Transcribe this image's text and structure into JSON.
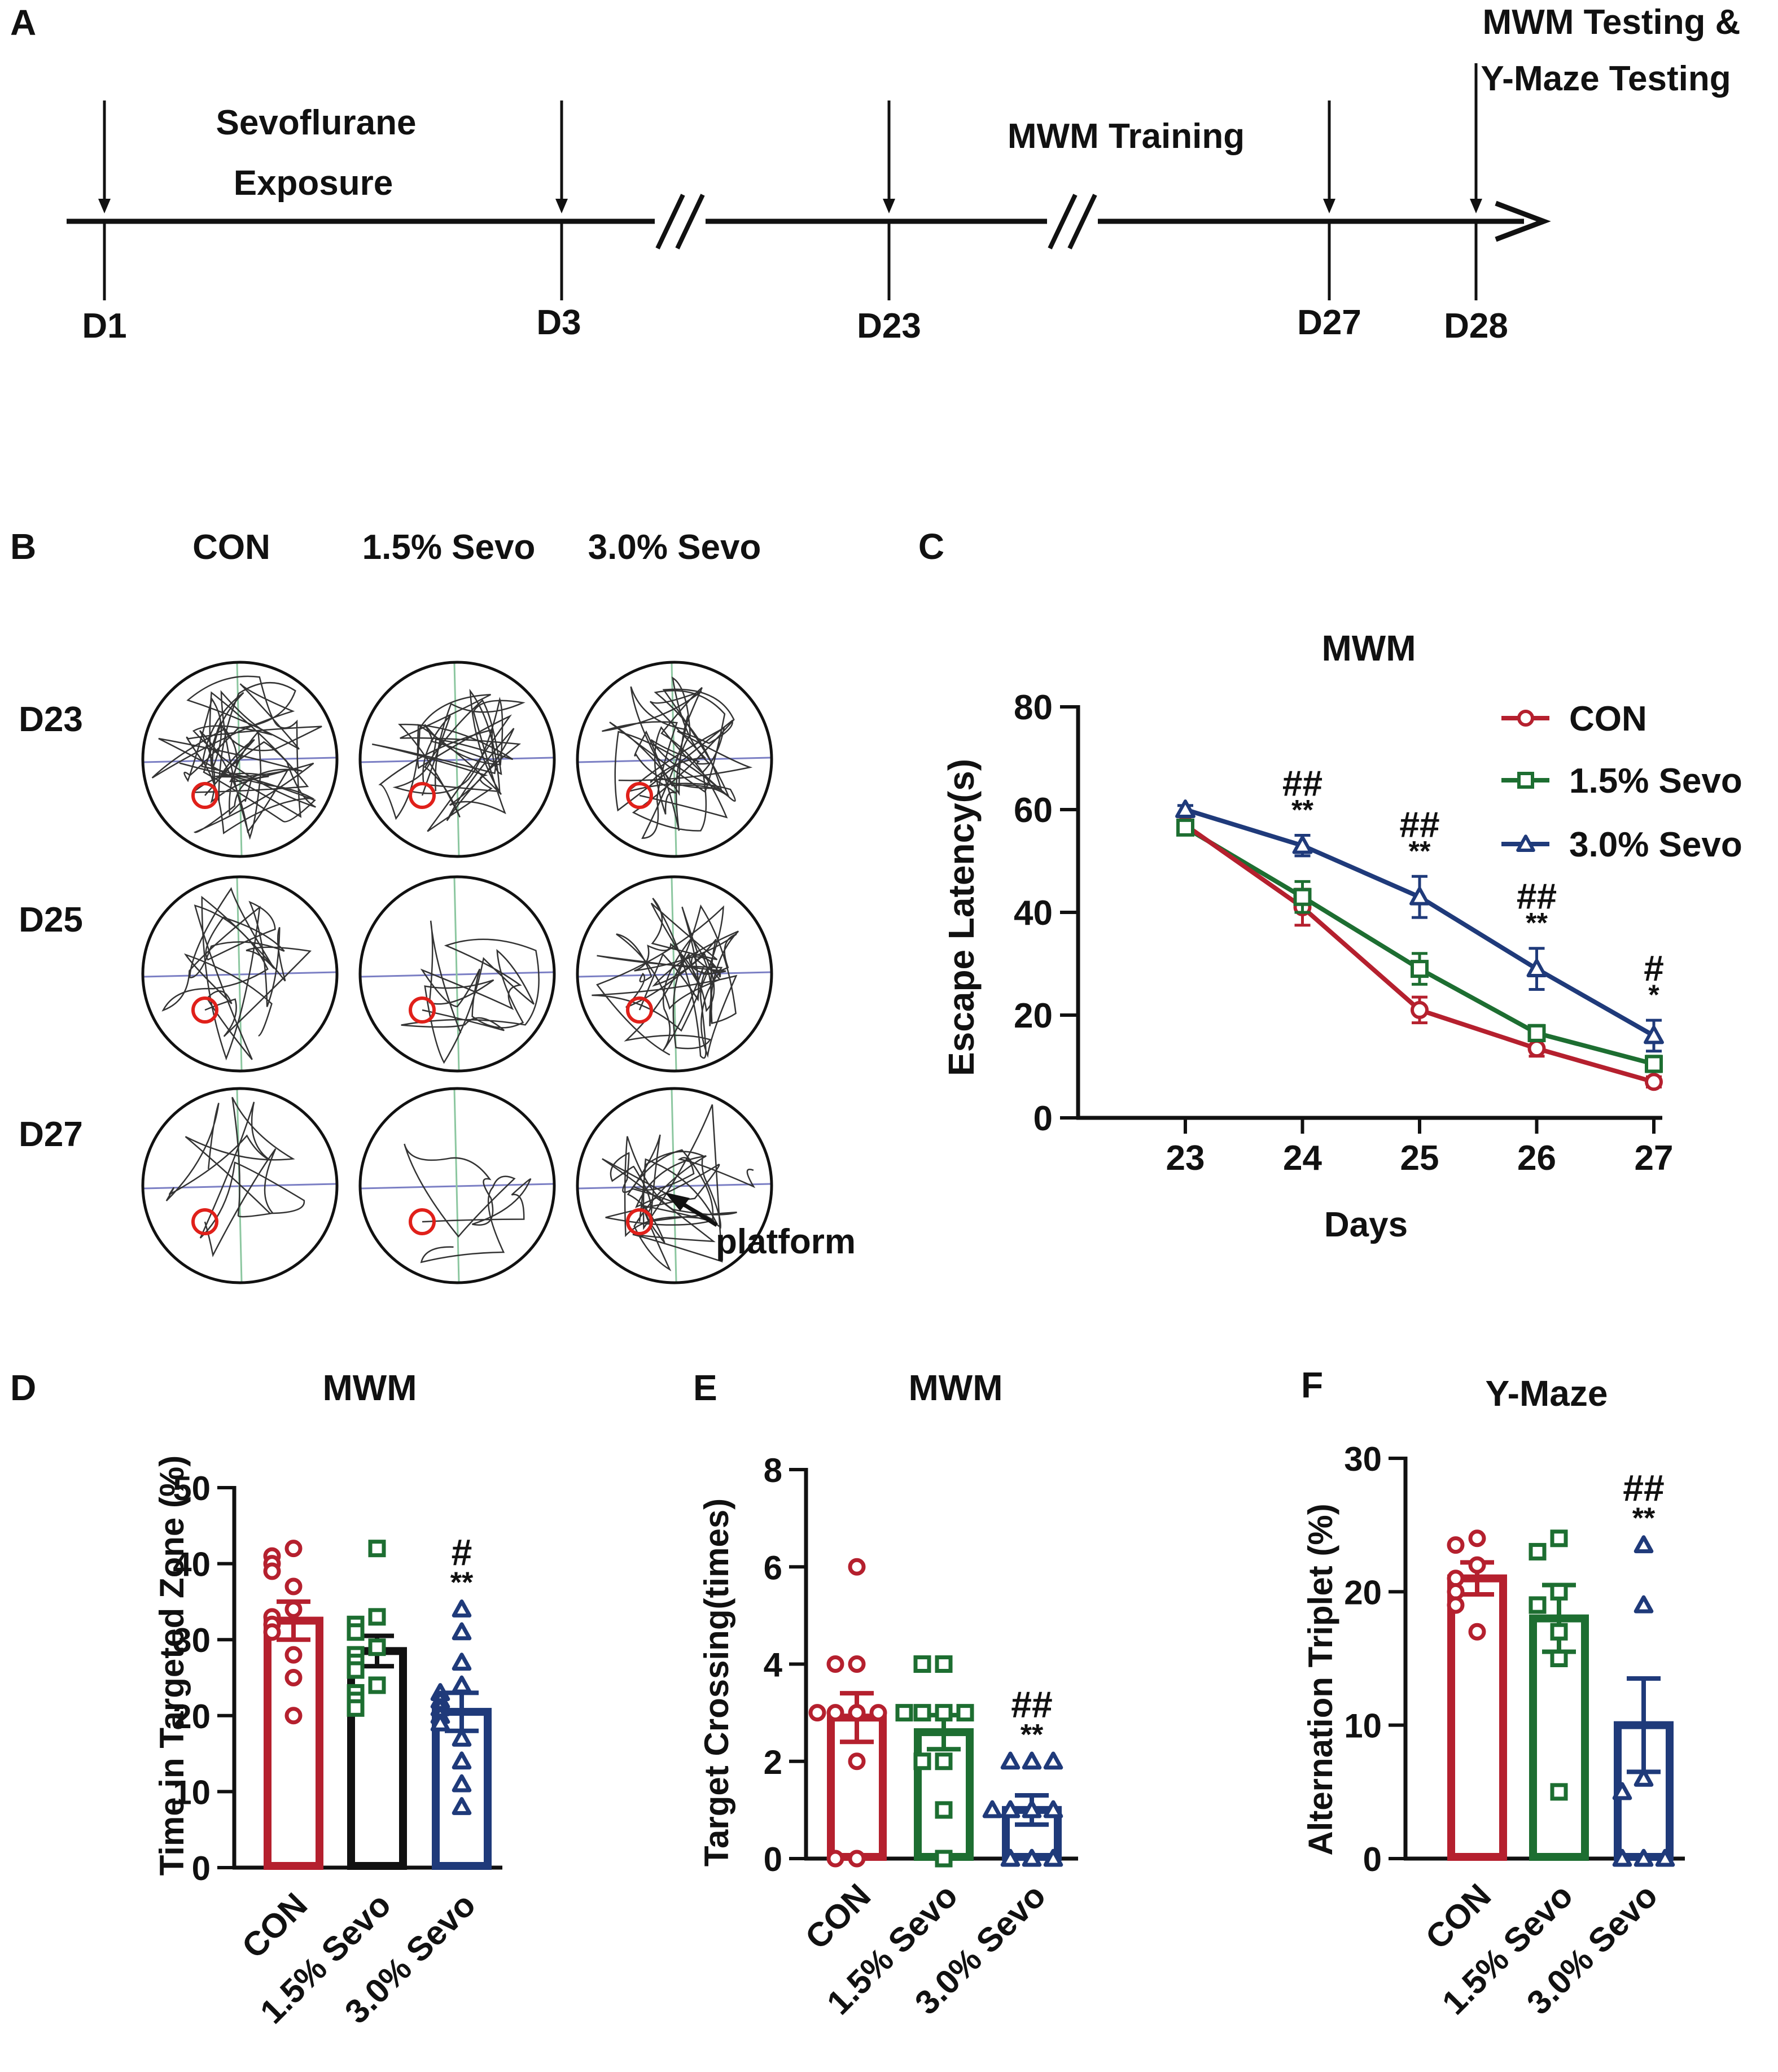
{
  "colors": {
    "con": "#b5202e",
    "sevo15": "#1d6e31",
    "sevo30": "#1f3a7a",
    "black": "#111111",
    "grid_h": "#7b7fc4",
    "grid_v": "#8cc7a0",
    "platform": "#e0201a"
  },
  "panel_a": {
    "label": "A",
    "markers": [
      {
        "day": "D1"
      },
      {
        "day": "D3"
      },
      {
        "day": "D23"
      },
      {
        "day": "D27"
      },
      {
        "day": "D28"
      }
    ],
    "labels": {
      "sevo_line1": "Sevoflurane",
      "sevo_line2": "Exposure",
      "training": "MWM Training",
      "testing_line1": "MWM Testing &",
      "testing_line2": "Y-Maze Testing"
    }
  },
  "panel_b": {
    "label": "B",
    "columns": [
      "CON",
      "1.5% Sevo",
      "3.0% Sevo"
    ],
    "rows": [
      "D23",
      "D25",
      "D27"
    ],
    "annotation": "platform"
  },
  "chart_data": [
    {
      "panel": "C",
      "type": "line",
      "title": "MWM",
      "xlabel": "Days",
      "ylabel": "Escape Latency(s)",
      "x": [
        23,
        24,
        25,
        26,
        27
      ],
      "xticks": [
        "23",
        "24",
        "25",
        "26",
        "27"
      ],
      "ylim": [
        0,
        80
      ],
      "yticks": [
        "0",
        "20",
        "40",
        "60",
        "80"
      ],
      "legend": "top-right",
      "series": [
        {
          "name": "CON",
          "color": "#b5202e",
          "marker": "circle",
          "values": [
            57,
            41,
            21,
            13.5,
            7
          ],
          "err": [
            1,
            3.5,
            2.5,
            1.5,
            1
          ]
        },
        {
          "name": "1.5% Sevo",
          "color": "#1d6e31",
          "marker": "square",
          "values": [
            56.5,
            43,
            29,
            16.5,
            10.5
          ],
          "err": [
            1,
            3,
            3,
            1.5,
            1.5
          ]
        },
        {
          "name": "3.0% Sevo",
          "color": "#1f3a7a",
          "marker": "triangle",
          "values": [
            60,
            53,
            43,
            29,
            16
          ],
          "err": [
            0.8,
            2,
            4,
            4,
            3
          ]
        }
      ],
      "annotations": [
        {
          "x": 24,
          "hash": "##",
          "stars": "**"
        },
        {
          "x": 25,
          "hash": "##",
          "stars": "**"
        },
        {
          "x": 26,
          "hash": "##",
          "stars": "**"
        },
        {
          "x": 27,
          "hash": "#",
          "stars": "*"
        }
      ]
    },
    {
      "panel": "D",
      "type": "bar",
      "title": "MWM",
      "ylabel": "Time in Targeted Zone (%)",
      "categories": [
        "CON",
        "1.5% Sevo",
        "3.0% Sevo"
      ],
      "ylim": [
        0,
        50
      ],
      "yticks": [
        "0",
        "10",
        "20",
        "30",
        "40",
        "50"
      ],
      "values": [
        32.5,
        28.5,
        20.5
      ],
      "err": [
        2.5,
        2,
        2.5
      ],
      "bar_colors": [
        "#b5202e",
        "#111111",
        "#1f3a7a"
      ],
      "point_colors": [
        "#b5202e",
        "#1d6e31",
        "#1f3a7a"
      ],
      "markers": [
        "circle",
        "square",
        "triangle"
      ],
      "points": [
        [
          42,
          41,
          40,
          39,
          37,
          34,
          33,
          32,
          31,
          28,
          25,
          20
        ],
        [
          42,
          33,
          32,
          31,
          29,
          28,
          27,
          26,
          24,
          23,
          22,
          21
        ],
        [
          34,
          31,
          27,
          24,
          23,
          22,
          21,
          20,
          19,
          17,
          14,
          11,
          8
        ]
      ],
      "annotation": {
        "index": 2,
        "hash": "#",
        "stars": "**"
      }
    },
    {
      "panel": "E",
      "type": "bar",
      "title": "MWM",
      "ylabel": "Target Crossing(times)",
      "categories": [
        "CON",
        "1.5% Sevo",
        "3.0% Sevo"
      ],
      "ylim": [
        0,
        8
      ],
      "yticks": [
        "0",
        "2",
        "4",
        "6",
        "8"
      ],
      "values": [
        2.9,
        2.6,
        1
      ],
      "err": [
        0.5,
        0.35,
        0.3
      ],
      "bar_colors": [
        "#b5202e",
        "#1d6e31",
        "#1f3a7a"
      ],
      "point_colors": [
        "#b5202e",
        "#1d6e31",
        "#1f3a7a"
      ],
      "markers": [
        "circle",
        "square",
        "triangle"
      ],
      "points": [
        [
          6,
          4,
          4,
          3,
          3,
          3,
          3,
          2,
          0,
          0
        ],
        [
          4,
          4,
          3,
          3,
          3,
          3,
          2,
          2,
          1,
          0
        ],
        [
          2,
          2,
          2,
          1,
          1,
          1,
          1,
          0,
          0,
          0
        ]
      ],
      "annotation": {
        "index": 2,
        "hash": "##",
        "stars": "**"
      }
    },
    {
      "panel": "F",
      "type": "bar",
      "title": "Y-Maze",
      "ylabel": "Alternation Triplet (%)",
      "categories": [
        "CON",
        "1.5% Sevo",
        "3.0% Sevo"
      ],
      "ylim": [
        0,
        30
      ],
      "yticks": [
        "0",
        "10",
        "20",
        "30"
      ],
      "values": [
        21,
        18,
        10
      ],
      "err": [
        1.2,
        2.5,
        3.5
      ],
      "bar_colors": [
        "#b5202e",
        "#1d6e31",
        "#1f3a7a"
      ],
      "point_colors": [
        "#b5202e",
        "#1d6e31",
        "#1f3a7a"
      ],
      "markers": [
        "circle",
        "square",
        "triangle"
      ],
      "points": [
        [
          24,
          23.5,
          22,
          21,
          20,
          19,
          17
        ],
        [
          24,
          23,
          20,
          19,
          17,
          15,
          5
        ],
        [
          23.5,
          19,
          6,
          5,
          0,
          0,
          0
        ]
      ],
      "annotation": {
        "index": 2,
        "hash": "##",
        "stars": "**"
      }
    }
  ]
}
